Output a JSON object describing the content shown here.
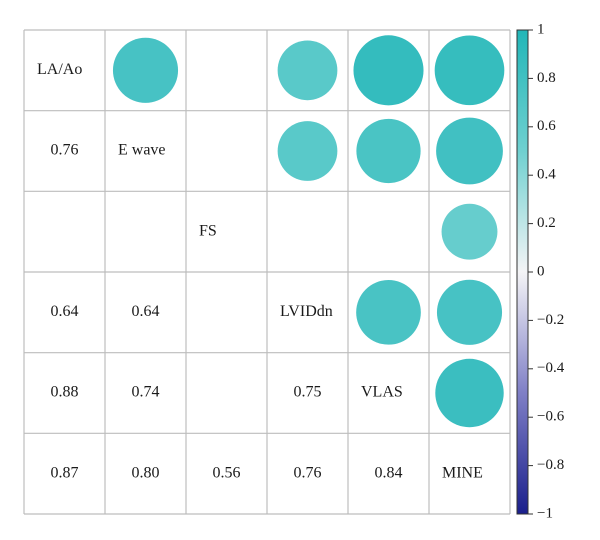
{
  "colors": {
    "grid": "#bdbdbd",
    "cbar_border": "#333333",
    "text": "#1a1a1a"
  },
  "chart_data": {
    "type": "heatmap",
    "subtype": "correlogram (circles above diagonal, coefficients below)",
    "variables": [
      "LA/Ao",
      "E wave",
      "FS",
      "LVIDdn",
      "VLAS",
      "MINE"
    ],
    "upper_circles": [
      {
        "row": 0,
        "col": 1,
        "value": 0.76
      },
      {
        "row": 0,
        "col": 3,
        "value": 0.64
      },
      {
        "row": 0,
        "col": 4,
        "value": 0.88
      },
      {
        "row": 0,
        "col": 5,
        "value": 0.87
      },
      {
        "row": 1,
        "col": 3,
        "value": 0.64
      },
      {
        "row": 1,
        "col": 4,
        "value": 0.74
      },
      {
        "row": 1,
        "col": 5,
        "value": 0.8
      },
      {
        "row": 2,
        "col": 5,
        "value": 0.56
      },
      {
        "row": 3,
        "col": 4,
        "value": 0.75
      },
      {
        "row": 3,
        "col": 5,
        "value": 0.76
      },
      {
        "row": 4,
        "col": 5,
        "value": 0.84
      }
    ],
    "lower_labels": [
      {
        "row": 1,
        "col": 0,
        "label": "0.76"
      },
      {
        "row": 3,
        "col": 0,
        "label": "0.64"
      },
      {
        "row": 3,
        "col": 1,
        "label": "0.64"
      },
      {
        "row": 4,
        "col": 0,
        "label": "0.88"
      },
      {
        "row": 4,
        "col": 1,
        "label": "0.74"
      },
      {
        "row": 4,
        "col": 3,
        "label": "0.75"
      },
      {
        "row": 5,
        "col": 0,
        "label": "0.87"
      },
      {
        "row": 5,
        "col": 1,
        "label": "0.80"
      },
      {
        "row": 5,
        "col": 2,
        "label": "0.56"
      },
      {
        "row": 5,
        "col": 3,
        "label": "0.76"
      },
      {
        "row": 5,
        "col": 4,
        "label": "0.84"
      }
    ],
    "colorbar": {
      "range": [
        -1,
        1
      ],
      "ticks": [
        "1",
        "0.8",
        "0.6",
        "0.4",
        "0.2",
        "0",
        "−0.2",
        "−0.4",
        "−0.6",
        "−0.8",
        "−1"
      ],
      "tick_values": [
        1,
        0.8,
        0.6,
        0.4,
        0.2,
        0,
        -0.2,
        -0.4,
        -0.6,
        -0.8,
        -1
      ],
      "stops": [
        {
          "value": 1,
          "color": "#22b6b8"
        },
        {
          "value": 0.5,
          "color": "#6fd0d0"
        },
        {
          "value": 0,
          "color": "#f4f4f6"
        },
        {
          "value": -0.5,
          "color": "#7f7fc6"
        },
        {
          "value": -1,
          "color": "#1a1f8c"
        }
      ]
    },
    "grid": true,
    "legend": "right"
  }
}
